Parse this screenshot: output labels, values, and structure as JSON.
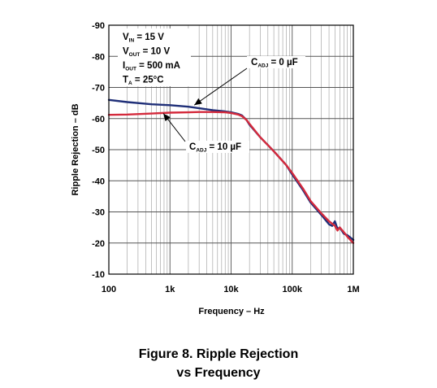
{
  "caption": {
    "line1": "Figure 8. Ripple Rejection",
    "line2": "vs Frequency"
  },
  "conditions": [
    {
      "main": "V",
      "sub": "IN",
      "rest": " = 15 V"
    },
    {
      "main": "V",
      "sub": "OUT",
      "rest": " = 10 V"
    },
    {
      "main": "I",
      "sub": "OUT",
      "rest": " = 500 mA"
    },
    {
      "main": "T",
      "sub": "A",
      "rest": " = 25°C"
    }
  ],
  "chart_data": {
    "type": "line",
    "title": "",
    "xlabel": "Frequency – Hz",
    "ylabel": "Ripple Rejection – dB",
    "x_scale": "log",
    "xlim": [
      100,
      1000000
    ],
    "ylim": [
      -10,
      -90
    ],
    "x_ticks": [
      {
        "value": 100,
        "label": "100"
      },
      {
        "value": 1000,
        "label": "1k"
      },
      {
        "value": 10000,
        "label": "10k"
      },
      {
        "value": 100000,
        "label": "100k"
      },
      {
        "value": 1000000,
        "label": "1M"
      }
    ],
    "y_ticks": [
      {
        "value": -90,
        "label": "-90"
      },
      {
        "value": -80,
        "label": "-80"
      },
      {
        "value": -70,
        "label": "-70"
      },
      {
        "value": -60,
        "label": "-60"
      },
      {
        "value": -50,
        "label": "-50"
      },
      {
        "value": -40,
        "label": "-40"
      },
      {
        "value": -30,
        "label": "-30"
      },
      {
        "value": -20,
        "label": "-20"
      },
      {
        "value": -10,
        "label": "-10"
      }
    ],
    "grid": true,
    "series": [
      {
        "name": "C_ADJ = 0 µF",
        "label_main": "C",
        "label_sub": "ADJ",
        "label_rest": " = 0 µF",
        "color": "#1f2f78",
        "x": [
          100,
          200,
          500,
          1000,
          2000,
          3000,
          5000,
          8000,
          10000,
          13000,
          15000,
          18000,
          20000,
          30000,
          50000,
          80000,
          100000,
          150000,
          200000,
          300000,
          400000,
          450000,
          500000,
          550000,
          600000,
          700000,
          800000,
          1000000
        ],
        "y": [
          -66,
          -65.3,
          -64.6,
          -64.3,
          -63.8,
          -63.3,
          -62.7,
          -62.3,
          -62,
          -61.5,
          -61,
          -59.5,
          -58,
          -54,
          -49.5,
          -45,
          -42,
          -37,
          -33,
          -29,
          -26,
          -25.5,
          -27,
          -24.5,
          -25,
          -23,
          -22.5,
          -21
        ]
      },
      {
        "name": "C_ADJ = 10 µF",
        "label_main": "C",
        "label_sub": "ADJ",
        "label_rest": " = 10 µF",
        "color": "#d42a3c",
        "x": [
          100,
          200,
          500,
          1000,
          2000,
          3000,
          5000,
          8000,
          10000,
          13000,
          15000,
          18000,
          20000,
          30000,
          50000,
          80000,
          100000,
          150000,
          200000,
          300000,
          400000,
          500000,
          550000,
          600000,
          700000,
          800000,
          1000000
        ],
        "y": [
          -61.2,
          -61.3,
          -61.6,
          -61.9,
          -62,
          -62.1,
          -62.1,
          -62,
          -61.8,
          -61.3,
          -60.8,
          -59.5,
          -58.3,
          -54,
          -49.5,
          -45,
          -42.5,
          -37.5,
          -33.5,
          -29.5,
          -27,
          -25.5,
          -24,
          -25,
          -23.5,
          -22,
          -20
        ]
      }
    ]
  }
}
